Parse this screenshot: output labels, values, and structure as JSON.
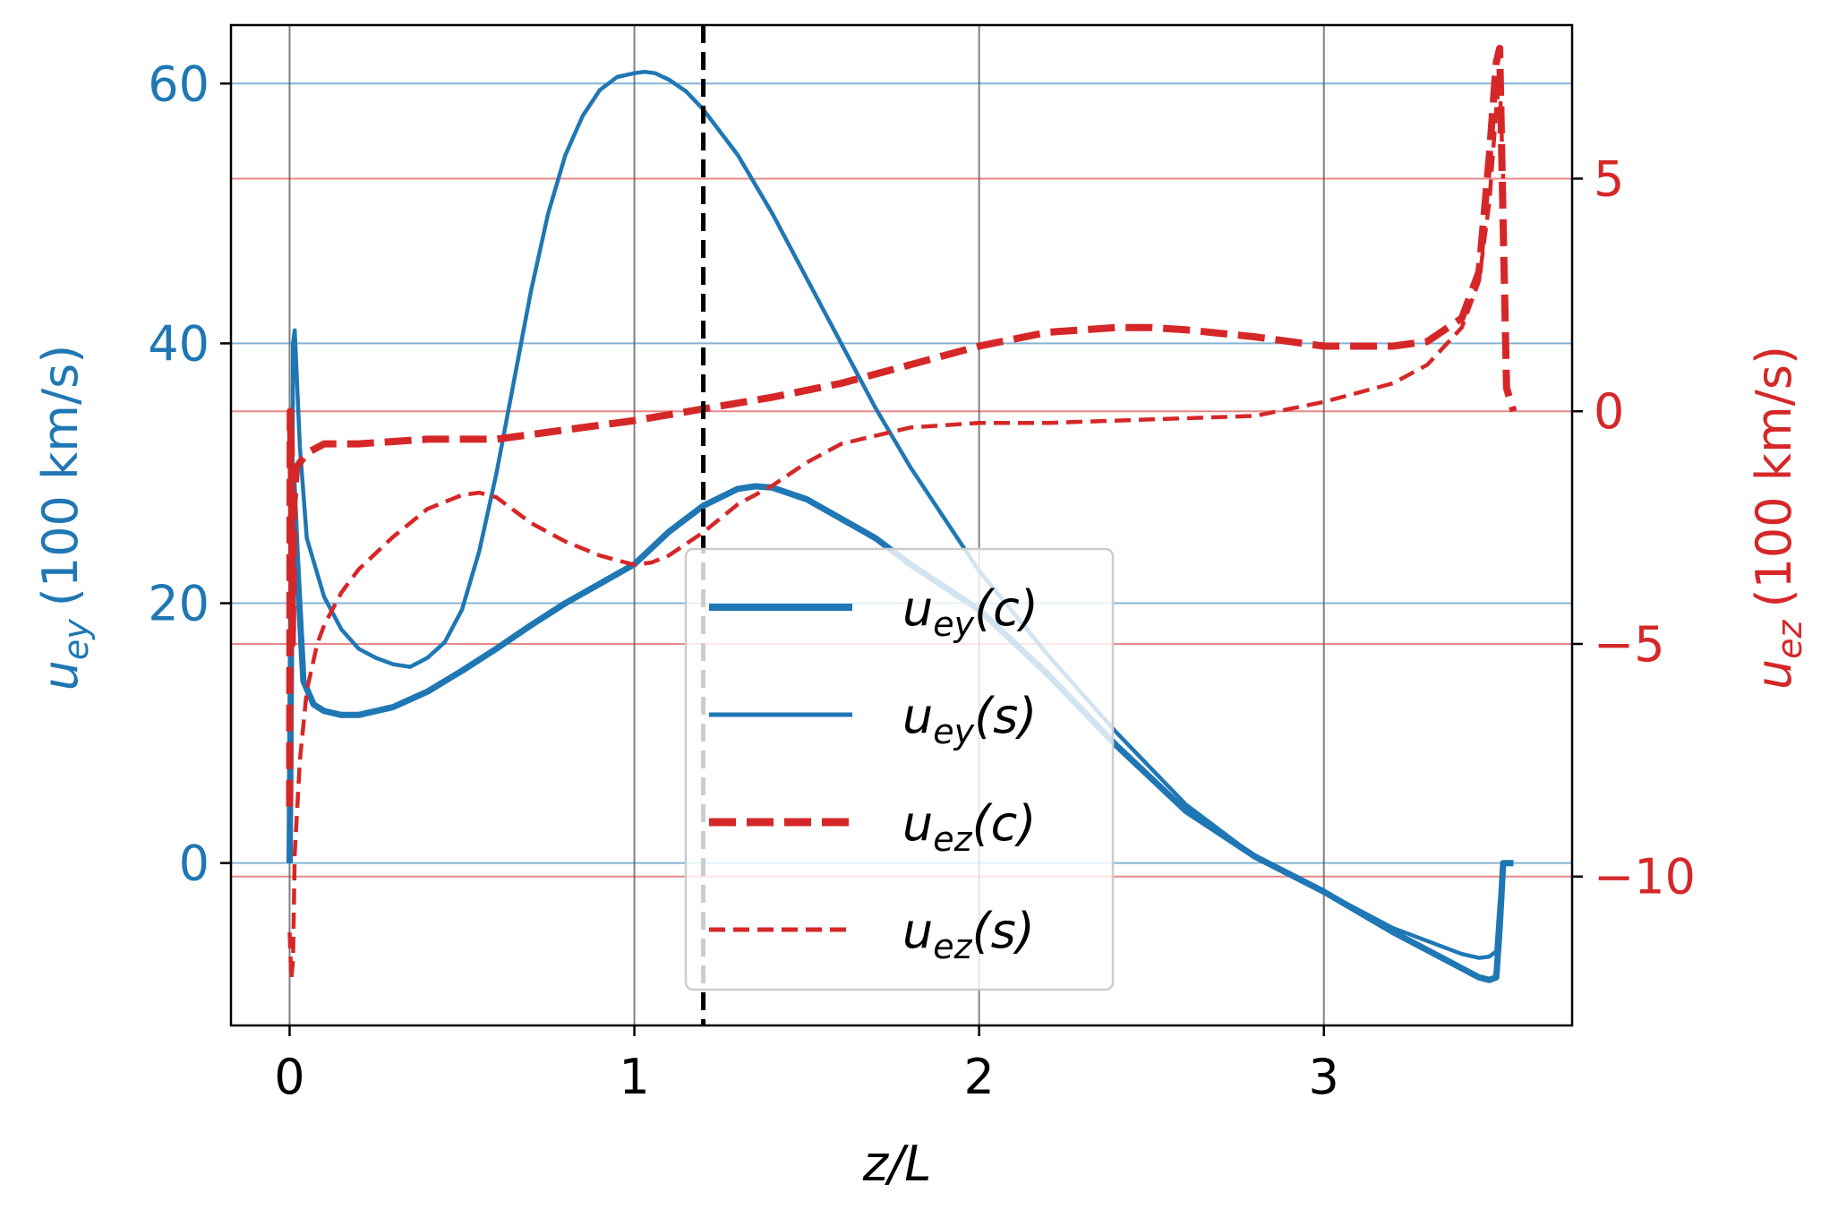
{
  "chart_data": {
    "type": "line",
    "xlabel": "z/L",
    "ylabel_left": "u_ey (100 km/s)",
    "ylabel_right": "u_ez (100 km/s)",
    "xlim": [
      -0.17,
      3.72
    ],
    "ylim_left": [
      -12.5,
      64.5
    ],
    "ylim_right": [
      -13.2,
      8.3
    ],
    "x_ticks": [
      "0",
      "1",
      "2",
      "3"
    ],
    "y_left_ticks": [
      "0",
      "20",
      "40",
      "60"
    ],
    "y_right_ticks": [
      "5",
      "0",
      "−5",
      "−10"
    ],
    "grid": true,
    "vertical_marker_x": 1.2,
    "legend_position": "lower-center",
    "colors": {
      "left": "#1f77b4",
      "right": "#d62728",
      "marker": "#000000",
      "grid": "#808080"
    },
    "series": [
      {
        "name": "u_ey(c)",
        "axis": "left",
        "style": "solid-thick",
        "x": [
          0,
          0.005,
          0.01,
          0.02,
          0.04,
          0.07,
          0.1,
          0.15,
          0.2,
          0.3,
          0.4,
          0.5,
          0.6,
          0.7,
          0.8,
          0.9,
          1.0,
          1.1,
          1.2,
          1.3,
          1.35,
          1.4,
          1.5,
          1.6,
          1.7,
          1.8,
          2.0,
          2.2,
          2.4,
          2.6,
          2.8,
          3.0,
          3.2,
          3.35,
          3.45,
          3.48,
          3.5,
          3.51,
          3.52,
          3.55
        ],
        "y": [
          0,
          20,
          30,
          24,
          14,
          12.2,
          11.7,
          11.4,
          11.4,
          12,
          13.2,
          14.8,
          16.5,
          18.3,
          20,
          21.5,
          23,
          25.5,
          27.5,
          28.8,
          29,
          28.9,
          28,
          26.5,
          25,
          23,
          19.5,
          14.5,
          9,
          4,
          0.5,
          -2.2,
          -5.3,
          -7.4,
          -8.8,
          -9,
          -8.8,
          -5,
          0,
          0
        ]
      },
      {
        "name": "u_ey(s)",
        "axis": "left",
        "style": "solid-thin",
        "x": [
          0,
          0.005,
          0.01,
          0.015,
          0.03,
          0.05,
          0.1,
          0.15,
          0.2,
          0.25,
          0.3,
          0.35,
          0.4,
          0.45,
          0.5,
          0.55,
          0.6,
          0.65,
          0.7,
          0.75,
          0.8,
          0.85,
          0.9,
          0.95,
          1.0,
          1.03,
          1.06,
          1.1,
          1.15,
          1.2,
          1.3,
          1.4,
          1.5,
          1.6,
          1.7,
          1.8,
          1.9,
          2.0,
          2.2,
          2.4,
          2.6,
          2.8,
          3.0,
          3.2,
          3.4,
          3.45,
          3.48,
          3.5,
          3.51,
          3.52
        ],
        "y": [
          0,
          5,
          40,
          41,
          32,
          25,
          20.5,
          18,
          16.5,
          15.8,
          15.3,
          15.1,
          15.8,
          17,
          19.5,
          24,
          30,
          37,
          44,
          50,
          54.5,
          57.5,
          59.5,
          60.5,
          60.8,
          60.9,
          60.8,
          60.3,
          59.4,
          58,
          54.5,
          50,
          45,
          40,
          35,
          30.5,
          26.5,
          22.5,
          16,
          10,
          4.5,
          0.5,
          -2.2,
          -5,
          -7,
          -7.3,
          -7.2,
          -6.8,
          -3,
          0
        ]
      },
      {
        "name": "u_ez(c)",
        "axis": "right",
        "style": "dashed-thick",
        "x": [
          0,
          0.002,
          0.005,
          0.008,
          0.012,
          0.02,
          0.05,
          0.1,
          0.2,
          0.4,
          0.6,
          0.8,
          1.0,
          1.2,
          1.4,
          1.6,
          1.8,
          2.0,
          2.2,
          2.4,
          2.5,
          2.6,
          2.8,
          3.0,
          3.2,
          3.3,
          3.4,
          3.45,
          3.48,
          3.5,
          3.51,
          3.52,
          3.53,
          3.55
        ],
        "y": [
          -8.5,
          0,
          -1,
          -5,
          -2,
          -1.2,
          -0.9,
          -0.7,
          -0.7,
          -0.6,
          -0.6,
          -0.4,
          -0.2,
          0.05,
          0.3,
          0.6,
          1.0,
          1.4,
          1.7,
          1.8,
          1.8,
          1.75,
          1.6,
          1.4,
          1.4,
          1.5,
          2.0,
          3.0,
          5.5,
          7.5,
          7.8,
          4.0,
          0.5,
          0
        ]
      },
      {
        "name": "u_ez(s)",
        "axis": "right",
        "style": "dashed-thin",
        "x": [
          0,
          0.005,
          0.01,
          0.015,
          0.03,
          0.05,
          0.08,
          0.1,
          0.15,
          0.2,
          0.3,
          0.4,
          0.5,
          0.55,
          0.6,
          0.7,
          0.8,
          0.9,
          1.0,
          1.05,
          1.1,
          1.2,
          1.3,
          1.4,
          1.5,
          1.6,
          1.8,
          2.0,
          2.2,
          2.4,
          2.6,
          2.8,
          3.0,
          3.1,
          3.2,
          3.3,
          3.4,
          3.45,
          3.48,
          3.5,
          3.51,
          3.52
        ],
        "y": [
          -11.2,
          -12.2,
          -11.8,
          -9.5,
          -7.5,
          -6,
          -5,
          -4.6,
          -3.9,
          -3.4,
          -2.7,
          -2.1,
          -1.8,
          -1.75,
          -1.85,
          -2.4,
          -2.8,
          -3.1,
          -3.3,
          -3.25,
          -3.1,
          -2.6,
          -2.0,
          -1.6,
          -1.1,
          -0.7,
          -0.35,
          -0.25,
          -0.25,
          -0.2,
          -0.15,
          -0.1,
          0.2,
          0.4,
          0.6,
          1.0,
          1.8,
          2.8,
          4.5,
          6.5,
          7.2,
          5
        ]
      }
    ]
  },
  "legend": {
    "entries": [
      {
        "base": "u",
        "sub": "ey",
        "arg": "(c)"
      },
      {
        "base": "u",
        "sub": "ey",
        "arg": "(s)"
      },
      {
        "base": "u",
        "sub": "ez",
        "arg": "(c)"
      },
      {
        "base": "u",
        "sub": "ez",
        "arg": "(s)"
      }
    ]
  },
  "labels": {
    "xlabel_text": "z/L",
    "ylabel_left_base": "u",
    "ylabel_left_sub": "ey",
    "ylabel_left_unit": "(100 km/s)",
    "ylabel_right_base": "u",
    "ylabel_right_sub": "ez",
    "ylabel_right_unit": "(100 km/s)"
  }
}
